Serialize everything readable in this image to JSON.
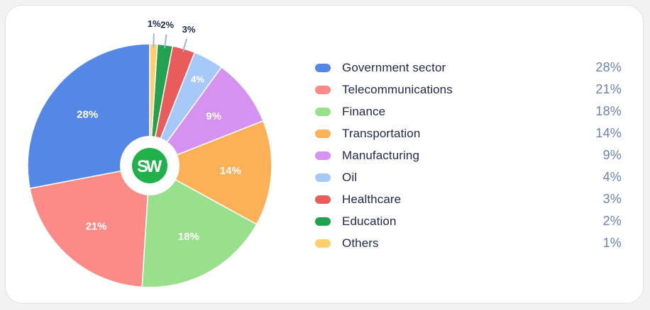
{
  "chart_data": {
    "type": "pie",
    "categories": [
      "Government sector",
      "Telecommunications",
      "Finance",
      "Transportation",
      "Manufacturing",
      "Oil",
      "Healthcare",
      "Education",
      "Others"
    ],
    "values": [
      28,
      21,
      18,
      14,
      9,
      4,
      3,
      2,
      1
    ],
    "value_labels": [
      "28%",
      "21%",
      "18%",
      "14%",
      "9%",
      "4%",
      "3%",
      "2%",
      "1%"
    ],
    "colors": [
      "#5588e6",
      "#fc8a87",
      "#98e08c",
      "#fdb156",
      "#d592f0",
      "#a7c9f9",
      "#e85c5c",
      "#22a24f",
      "#fdcf6f"
    ],
    "title": "",
    "legend_position": "right",
    "center_logo": {
      "text_s": "S",
      "text_w": "W",
      "color": "#21b14b",
      "s_color": "#1e3a4a"
    }
  }
}
